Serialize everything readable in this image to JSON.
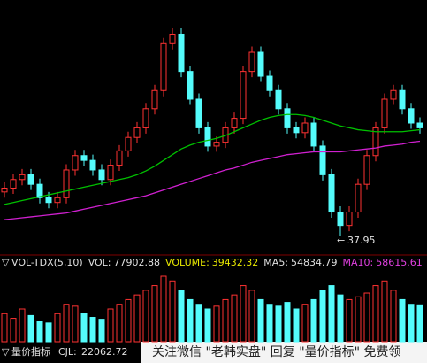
{
  "chart_data": {
    "type": "candlestick",
    "open": [
      42.5,
      42.9,
      43.8,
      44.3,
      43.3,
      41.9,
      41.4,
      41.9,
      44.8,
      46.3,
      45.8,
      44.8,
      43.8,
      45.3,
      46.8,
      48.2,
      49.2,
      51.2,
      53.1,
      58.0,
      59.0,
      55.1,
      52.2,
      49.2,
      47.3,
      47.7,
      49.2,
      50.2,
      55.1,
      57.1,
      54.6,
      53.1,
      51.2,
      49.2,
      48.7,
      49.7,
      47.3,
      44.3,
      40.4,
      39.0,
      40.4,
      43.3,
      46.3,
      49.2,
      52.2,
      53.1,
      51.2,
      49.7
    ],
    "high": [
      43.5,
      44.4,
      44.9,
      44.9,
      43.9,
      42.5,
      42.5,
      45.4,
      46.9,
      46.9,
      46.4,
      45.4,
      45.9,
      47.4,
      48.8,
      49.8,
      51.8,
      53.7,
      58.6,
      59.6,
      59.6,
      55.7,
      52.8,
      49.8,
      48.3,
      49.8,
      50.8,
      55.7,
      57.7,
      57.7,
      55.2,
      53.7,
      51.8,
      49.8,
      50.3,
      50.3,
      47.9,
      44.9,
      41.0,
      41.0,
      43.9,
      46.9,
      49.8,
      52.8,
      53.7,
      53.7,
      51.8,
      50.3
    ],
    "low": [
      41.9,
      42.3,
      43.2,
      42.7,
      41.3,
      40.8,
      40.8,
      41.3,
      44.2,
      45.2,
      44.2,
      43.2,
      43.2,
      44.7,
      46.2,
      47.6,
      48.6,
      50.6,
      52.5,
      57.4,
      54.5,
      51.6,
      48.6,
      46.7,
      46.7,
      47.1,
      48.6,
      49.6,
      54.5,
      54.0,
      52.5,
      50.6,
      48.6,
      48.1,
      48.1,
      46.7,
      43.7,
      39.8,
      37.95,
      38.4,
      39.8,
      42.7,
      45.7,
      48.6,
      51.6,
      50.6,
      49.1,
      48.6
    ],
    "close": [
      42.9,
      43.8,
      44.3,
      43.3,
      41.9,
      41.4,
      41.9,
      44.8,
      46.3,
      45.8,
      44.8,
      43.8,
      45.3,
      46.8,
      48.2,
      49.2,
      51.2,
      53.1,
      58.0,
      59.0,
      55.1,
      52.2,
      49.2,
      47.3,
      47.7,
      49.2,
      50.2,
      55.1,
      57.1,
      54.6,
      53.1,
      51.2,
      49.2,
      48.7,
      49.7,
      47.3,
      44.3,
      40.4,
      39.0,
      40.4,
      43.3,
      46.3,
      49.2,
      52.2,
      53.1,
      51.2,
      49.7,
      49.2
    ],
    "series": [
      {
        "color": "#00c000",
        "values": [
          41.2,
          41.4,
          41.6,
          41.8,
          42,
          42.2,
          42.4,
          42.6,
          42.8,
          43,
          43.2,
          43.4,
          43.6,
          43.8,
          44,
          44.3,
          44.7,
          45.2,
          45.8,
          46.4,
          47,
          47.4,
          47.7,
          47.9,
          48.1,
          48.4,
          48.8,
          49.2,
          49.6,
          50,
          50.3,
          50.5,
          50.6,
          50.6,
          50.5,
          50.3,
          50,
          49.7,
          49.4,
          49.2,
          49,
          48.9,
          48.8,
          48.8,
          48.8,
          48.8,
          48.9,
          49
        ]
      },
      {
        "color": "#d020d0",
        "values": [
          39.6,
          39.7,
          39.8,
          39.9,
          40,
          40.1,
          40.2,
          40.3,
          40.5,
          40.7,
          40.9,
          41.1,
          41.3,
          41.5,
          41.7,
          41.9,
          42.1,
          42.4,
          42.7,
          43,
          43.3,
          43.6,
          43.9,
          44.2,
          44.5,
          44.8,
          45,
          45.3,
          45.6,
          45.8,
          46,
          46.2,
          46.4,
          46.5,
          46.6,
          46.7,
          46.7,
          46.7,
          46.7,
          46.8,
          46.9,
          47,
          47.1,
          47.3,
          47.4,
          47.5,
          47.7,
          47.8
        ]
      }
    ],
    "volume": [
      30000,
      25000,
      35000,
      28000,
      22000,
      20000,
      30000,
      40000,
      38000,
      30000,
      26000,
      24000,
      35000,
      40000,
      45000,
      50000,
      55000,
      60000,
      70000,
      65000,
      55000,
      45000,
      40000,
      35000,
      38000,
      45000,
      50000,
      60000,
      55000,
      45000,
      40000,
      38000,
      42000,
      35000,
      40000,
      45000,
      55000,
      60000,
      50000,
      45000,
      48000,
      52000,
      60000,
      65000,
      55000,
      45000,
      40000,
      39432.32
    ],
    "indicator": "VOL-TDX(5,10)",
    "readouts": [
      {
        "label": "VOL:",
        "value": 77902.88,
        "color": "#e0e0e0"
      },
      {
        "label": "VOLUME:",
        "value": 39432.32,
        "color": "#e8e800"
      },
      {
        "label": "MA5:",
        "value": 54834.79,
        "color": "#e0e0e0"
      },
      {
        "label": "MA10:",
        "value": 58615.61,
        "color": "#e040e0"
      }
    ],
    "bottom_indicator": "量价指标",
    "bottom_label": "CJL:",
    "bottom_value": 22062.72,
    "watermark": "关注微信 \"老韩实盘\" 回复 \"量价指标\" 免费领"
  }
}
